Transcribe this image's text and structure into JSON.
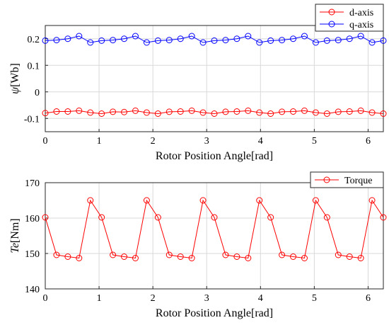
{
  "chart_data": [
    {
      "type": "line",
      "xlabel": "Rotor Position Angle[rad]",
      "ylabel_symbol": "ψ",
      "ylabel_unit": "[Wb]",
      "xlim": [
        0,
        6.2832
      ],
      "ylim": [
        -0.15,
        0.25
      ],
      "xticks": [
        "0",
        "1",
        "2",
        "3",
        "4",
        "5",
        "6"
      ],
      "yticks": [
        "-0.1",
        "0",
        "0.1",
        "0.2"
      ],
      "grid": true,
      "legend_position": "top-right",
      "x": [
        0,
        0.2094,
        0.4189,
        0.6283,
        0.8378,
        1.0472,
        1.2566,
        1.4661,
        1.6755,
        1.885,
        2.0944,
        2.3038,
        2.5133,
        2.7227,
        2.9322,
        3.1416,
        3.351,
        3.5605,
        3.7699,
        3.9794,
        4.1888,
        4.3982,
        4.6077,
        4.8171,
        5.0265,
        5.236,
        5.4454,
        5.6549,
        5.8643,
        6.0737,
        6.2832
      ],
      "series": [
        {
          "name": "d-axis",
          "color": "#ff0000",
          "values": [
            -0.08,
            -0.074,
            -0.074,
            -0.071,
            -0.078,
            -0.082,
            -0.075,
            -0.076,
            -0.071,
            -0.078,
            -0.082,
            -0.075,
            -0.074,
            -0.071,
            -0.078,
            -0.082,
            -0.075,
            -0.074,
            -0.071,
            -0.078,
            -0.082,
            -0.075,
            -0.074,
            -0.071,
            -0.078,
            -0.082,
            -0.075,
            -0.074,
            -0.071,
            -0.078,
            -0.082
          ]
        },
        {
          "name": "q-axis",
          "color": "#0000ff",
          "values": [
            0.193,
            0.195,
            0.2,
            0.21,
            0.186,
            0.193,
            0.195,
            0.2,
            0.21,
            0.186,
            0.193,
            0.195,
            0.2,
            0.21,
            0.186,
            0.193,
            0.195,
            0.2,
            0.21,
            0.186,
            0.193,
            0.195,
            0.2,
            0.21,
            0.186,
            0.193,
            0.195,
            0.2,
            0.21,
            0.186,
            0.193
          ]
        }
      ]
    },
    {
      "type": "line",
      "xlabel": "Rotor Position Angle[rad]",
      "ylabel_symbol": "Te",
      "ylabel_unit": "[Nm]",
      "xlim": [
        0,
        6.2832
      ],
      "ylim": [
        140,
        170
      ],
      "xticks": [
        "0",
        "1",
        "2",
        "3",
        "4",
        "5",
        "6"
      ],
      "yticks": [
        "140",
        "150",
        "160",
        "170"
      ],
      "grid": true,
      "legend_position": "top-right",
      "x": [
        0,
        0.2094,
        0.4189,
        0.6283,
        0.8378,
        1.0472,
        1.2566,
        1.4661,
        1.6755,
        1.885,
        2.0944,
        2.3038,
        2.5133,
        2.7227,
        2.9322,
        3.1416,
        3.351,
        3.5605,
        3.7699,
        3.9794,
        4.1888,
        4.3982,
        4.6077,
        4.8171,
        5.0265,
        5.236,
        5.4454,
        5.6549,
        5.8643,
        6.0737,
        6.2832
      ],
      "series": [
        {
          "name": "Torque",
          "color": "#ff0000",
          "values": [
            160.2,
            149.6,
            149.1,
            148.7,
            165.0,
            160.2,
            149.6,
            149.1,
            148.7,
            165.0,
            160.2,
            149.6,
            149.1,
            148.7,
            165.0,
            160.2,
            149.6,
            149.1,
            148.7,
            165.0,
            160.2,
            149.6,
            149.1,
            148.7,
            165.0,
            160.2,
            149.6,
            149.1,
            148.7,
            165.0,
            160.2
          ]
        }
      ]
    }
  ]
}
